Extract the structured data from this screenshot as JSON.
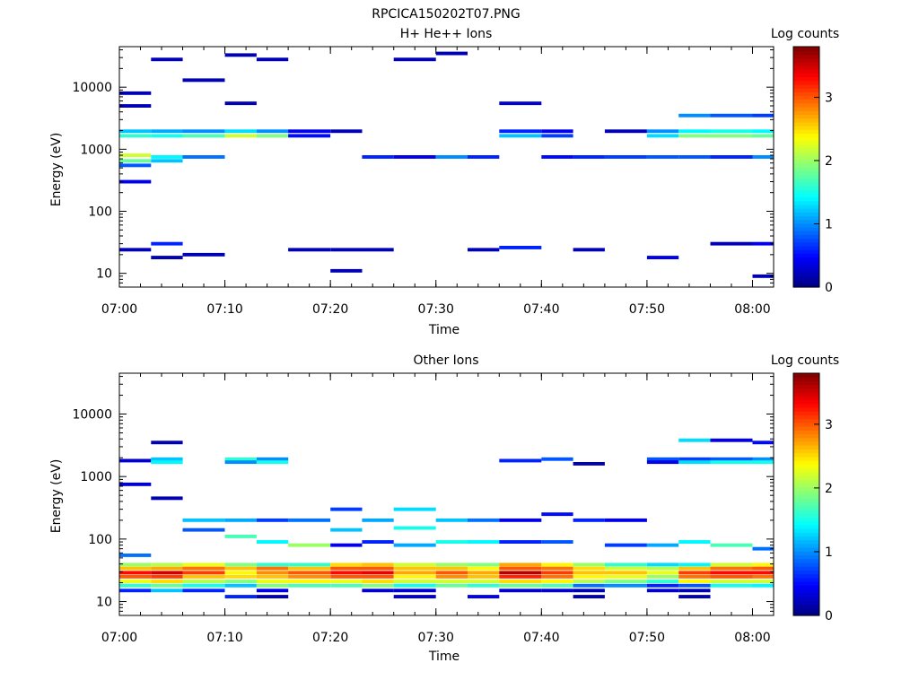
{
  "figure": {
    "title": "RPCICA150202T07.PNG"
  },
  "chart_data": [
    {
      "type": "heatmap",
      "title": "H+ He++ Ions",
      "xlabel": "Time",
      "ylabel": "Energy (eV)",
      "yscale": "log",
      "ylim": [
        6,
        45000
      ],
      "xlim": [
        "07:00",
        "08:02"
      ],
      "x_ticks": [
        "07:00",
        "07:10",
        "07:20",
        "07:30",
        "07:40",
        "07:50",
        "08:00"
      ],
      "y_ticks": [
        "10",
        "100",
        "1000",
        "10000"
      ],
      "colorbar": {
        "label": "Log counts",
        "range": [
          0,
          3.8
        ],
        "ticks": [
          "0",
          "1",
          "2",
          "3"
        ],
        "colormap": "jet"
      },
      "time_bins_start": [
        "07:00",
        "07:03",
        "07:06",
        "07:10",
        "07:13",
        "07:16",
        "07:20",
        "07:23",
        "07:26",
        "07:30",
        "07:33",
        "07:36",
        "07:40",
        "07:43",
        "07:46",
        "07:50",
        "07:53",
        "07:56",
        "08:00"
      ],
      "cells": [
        {
          "col": 0,
          "e": 1950,
          "v": 1.2
        },
        {
          "col": 0,
          "e": 1650,
          "v": 1.6
        },
        {
          "col": 0,
          "e": 800,
          "v": 2.2
        },
        {
          "col": 0,
          "e": 650,
          "v": 1.8
        },
        {
          "col": 0,
          "e": 550,
          "v": 0.8
        },
        {
          "col": 0,
          "e": 300,
          "v": 0.4
        },
        {
          "col": 0,
          "e": 5000,
          "v": 0.2
        },
        {
          "col": 0,
          "e": 8000,
          "v": 0.2
        },
        {
          "col": 0,
          "e": 24,
          "v": 0.2
        },
        {
          "col": 1,
          "e": 1950,
          "v": 1.1
        },
        {
          "col": 1,
          "e": 1650,
          "v": 1.5
        },
        {
          "col": 1,
          "e": 750,
          "v": 1.4
        },
        {
          "col": 1,
          "e": 650,
          "v": 1.2
        },
        {
          "col": 1,
          "e": 28000,
          "v": 0.2
        },
        {
          "col": 1,
          "e": 30,
          "v": 0.6
        },
        {
          "col": 1,
          "e": 18,
          "v": 0.2
        },
        {
          "col": 2,
          "e": 1950,
          "v": 1.0
        },
        {
          "col": 2,
          "e": 1650,
          "v": 1.7
        },
        {
          "col": 2,
          "e": 750,
          "v": 0.9
        },
        {
          "col": 2,
          "e": 13000,
          "v": 0.2
        },
        {
          "col": 2,
          "e": 20,
          "v": 0.2
        },
        {
          "col": 3,
          "e": 1950,
          "v": 1.3
        },
        {
          "col": 3,
          "e": 1650,
          "v": 2.2
        },
        {
          "col": 3,
          "e": 33000,
          "v": 0.2
        },
        {
          "col": 3,
          "e": 5500,
          "v": 0.2
        },
        {
          "col": 4,
          "e": 1950,
          "v": 1.0
        },
        {
          "col": 4,
          "e": 1650,
          "v": 1.9
        },
        {
          "col": 4,
          "e": 28000,
          "v": 0.2
        },
        {
          "col": 5,
          "e": 1950,
          "v": 0.4
        },
        {
          "col": 5,
          "e": 1650,
          "v": 0.5
        },
        {
          "col": 5,
          "e": 24,
          "v": 0.2
        },
        {
          "col": 6,
          "e": 1950,
          "v": 0.2
        },
        {
          "col": 6,
          "e": 24,
          "v": 0.2
        },
        {
          "col": 6,
          "e": 11,
          "v": 0.2
        },
        {
          "col": 7,
          "e": 24,
          "v": 0.2
        },
        {
          "col": 7,
          "e": 750,
          "v": 0.6
        },
        {
          "col": 8,
          "e": 750,
          "v": 0.4
        },
        {
          "col": 8,
          "e": 28000,
          "v": 0.2
        },
        {
          "col": 9,
          "e": 750,
          "v": 1.0
        },
        {
          "col": 9,
          "e": 35000,
          "v": 0.2
        },
        {
          "col": 10,
          "e": 750,
          "v": 0.6
        },
        {
          "col": 10,
          "e": 24,
          "v": 0.2
        },
        {
          "col": 11,
          "e": 1950,
          "v": 0.6
        },
        {
          "col": 11,
          "e": 1650,
          "v": 1.2
        },
        {
          "col": 11,
          "e": 26,
          "v": 0.6
        },
        {
          "col": 11,
          "e": 5500,
          "v": 0.3
        },
        {
          "col": 12,
          "e": 1950,
          "v": 0.4
        },
        {
          "col": 12,
          "e": 1650,
          "v": 0.7
        },
        {
          "col": 12,
          "e": 750,
          "v": 0.5
        },
        {
          "col": 13,
          "e": 750,
          "v": 0.6
        },
        {
          "col": 13,
          "e": 24,
          "v": 0.2
        },
        {
          "col": 14,
          "e": 750,
          "v": 0.7
        },
        {
          "col": 14,
          "e": 1950,
          "v": 0.2
        },
        {
          "col": 15,
          "e": 1950,
          "v": 1.0
        },
        {
          "col": 15,
          "e": 1650,
          "v": 1.3
        },
        {
          "col": 15,
          "e": 750,
          "v": 0.8
        },
        {
          "col": 15,
          "e": 18,
          "v": 0.4
        },
        {
          "col": 16,
          "e": 1950,
          "v": 1.4
        },
        {
          "col": 16,
          "e": 1650,
          "v": 1.9
        },
        {
          "col": 16,
          "e": 750,
          "v": 0.8
        },
        {
          "col": 16,
          "e": 3500,
          "v": 1.0
        },
        {
          "col": 17,
          "e": 1950,
          "v": 1.5
        },
        {
          "col": 17,
          "e": 1650,
          "v": 1.9
        },
        {
          "col": 17,
          "e": 750,
          "v": 0.6
        },
        {
          "col": 17,
          "e": 3500,
          "v": 0.8
        },
        {
          "col": 17,
          "e": 30,
          "v": 0.2
        },
        {
          "col": 18,
          "e": 1950,
          "v": 1.4
        },
        {
          "col": 18,
          "e": 1650,
          "v": 1.8
        },
        {
          "col": 18,
          "e": 750,
          "v": 1.0
        },
        {
          "col": 18,
          "e": 3500,
          "v": 0.7
        },
        {
          "col": 18,
          "e": 30,
          "v": 0.4
        },
        {
          "col": 18,
          "e": 9,
          "v": 0.2
        }
      ]
    },
    {
      "type": "heatmap",
      "title": "Other Ions",
      "xlabel": "Time",
      "ylabel": "Energy (eV)",
      "yscale": "log",
      "ylim": [
        6,
        45000
      ],
      "xlim": [
        "07:00",
        "08:02"
      ],
      "x_ticks": [
        "07:00",
        "07:10",
        "07:20",
        "07:30",
        "07:40",
        "07:50",
        "08:00"
      ],
      "y_ticks": [
        "10",
        "100",
        "1000",
        "10000"
      ],
      "colorbar": {
        "label": "Log counts",
        "range": [
          0,
          3.8
        ],
        "ticks": [
          "0",
          "1",
          "2",
          "3"
        ],
        "colormap": "jet"
      },
      "time_bins_start": [
        "07:00",
        "07:03",
        "07:06",
        "07:10",
        "07:13",
        "07:16",
        "07:20",
        "07:23",
        "07:26",
        "07:30",
        "07:33",
        "07:36",
        "07:40",
        "07:43",
        "07:46",
        "07:50",
        "07:53",
        "07:56",
        "08:00"
      ],
      "rows_low_energy": [
        {
          "e": 39,
          "values": [
            2.0,
            2.1,
            2.3,
            1.9,
            1.6,
            1.6,
            2.5,
            2.6,
            2.2,
            2.0,
            1.9,
            2.7,
            2.4,
            2.0,
            1.6,
            1.3,
            1.4,
            2.2,
            2.4
          ]
        },
        {
          "e": 34,
          "values": [
            2.6,
            2.7,
            2.9,
            2.6,
            2.9,
            2.6,
            3.0,
            3.0,
            2.6,
            2.6,
            2.4,
            3.0,
            2.9,
            2.5,
            2.2,
            2.1,
            2.6,
            2.9,
            3.0
          ]
        },
        {
          "e": 29,
          "values": [
            3.3,
            3.5,
            3.1,
            2.4,
            2.8,
            3.0,
            3.3,
            3.4,
            2.7,
            3.0,
            2.7,
            3.6,
            3.1,
            2.6,
            2.6,
            2.3,
            3.1,
            3.3,
            3.3
          ]
        },
        {
          "e": 25,
          "values": [
            3.0,
            3.1,
            2.6,
            2.5,
            2.6,
            2.8,
            3.0,
            3.0,
            2.4,
            2.8,
            2.6,
            3.2,
            2.9,
            2.4,
            2.3,
            2.0,
            2.9,
            3.0,
            2.9
          ]
        },
        {
          "e": 21,
          "values": [
            2.3,
            2.5,
            2.1,
            1.9,
            2.3,
            2.4,
            2.3,
            2.5,
            2.2,
            2.2,
            2.2,
            2.5,
            2.4,
            2.1,
            1.9,
            1.6,
            2.4,
            2.2,
            2.2
          ]
        },
        {
          "e": 18,
          "values": [
            1.6,
            1.8,
            1.5,
            1.2,
            1.9,
            1.7,
            1.7,
            1.9,
            1.5,
            1.8,
            1.6,
            1.8,
            1.7,
            0.9,
            1.0,
            0.6,
            0.8,
            1.5,
            1.4
          ]
        },
        {
          "e": 15,
          "values": [
            0.6,
            1.2,
            0.6,
            null,
            0.4,
            null,
            null,
            0.3,
            0.3,
            null,
            null,
            0.3,
            0.3,
            0.2,
            null,
            0.3,
            0.2,
            null,
            null
          ]
        },
        {
          "e": 12,
          "values": [
            null,
            null,
            null,
            0.6,
            0.2,
            null,
            null,
            null,
            0.3,
            null,
            0.4,
            null,
            null,
            0.2,
            null,
            null,
            0.2,
            null,
            null
          ]
        }
      ],
      "cells": [
        {
          "col": 0,
          "e": 1800,
          "v": 0.3
        },
        {
          "col": 0,
          "e": 750,
          "v": 0.3
        },
        {
          "col": 0,
          "e": 55,
          "v": 0.9
        },
        {
          "col": 1,
          "e": 3500,
          "v": 0.2
        },
        {
          "col": 1,
          "e": 1900,
          "v": 1.2
        },
        {
          "col": 1,
          "e": 1700,
          "v": 1.4
        },
        {
          "col": 1,
          "e": 450,
          "v": 0.2
        },
        {
          "col": 2,
          "e": 200,
          "v": 1.2
        },
        {
          "col": 2,
          "e": 140,
          "v": 0.8
        },
        {
          "col": 3,
          "e": 1900,
          "v": 1.6
        },
        {
          "col": 3,
          "e": 1700,
          "v": 1.0
        },
        {
          "col": 3,
          "e": 200,
          "v": 1.1
        },
        {
          "col": 3,
          "e": 110,
          "v": 1.7
        },
        {
          "col": 4,
          "e": 1900,
          "v": 1.0
        },
        {
          "col": 4,
          "e": 1700,
          "v": 1.5
        },
        {
          "col": 4,
          "e": 200,
          "v": 0.7
        },
        {
          "col": 4,
          "e": 90,
          "v": 1.4
        },
        {
          "col": 5,
          "e": 200,
          "v": 0.9
        },
        {
          "col": 5,
          "e": 80,
          "v": 2.0
        },
        {
          "col": 6,
          "e": 300,
          "v": 0.7
        },
        {
          "col": 6,
          "e": 140,
          "v": 1.2
        },
        {
          "col": 6,
          "e": 80,
          "v": 0.4
        },
        {
          "col": 7,
          "e": 200,
          "v": 1.1
        },
        {
          "col": 7,
          "e": 90,
          "v": 0.6
        },
        {
          "col": 8,
          "e": 300,
          "v": 1.3
        },
        {
          "col": 8,
          "e": 150,
          "v": 1.5
        },
        {
          "col": 8,
          "e": 80,
          "v": 1.1
        },
        {
          "col": 9,
          "e": 200,
          "v": 1.2
        },
        {
          "col": 9,
          "e": 90,
          "v": 1.5
        },
        {
          "col": 10,
          "e": 200,
          "v": 0.9
        },
        {
          "col": 10,
          "e": 90,
          "v": 1.4
        },
        {
          "col": 11,
          "e": 1800,
          "v": 0.6
        },
        {
          "col": 11,
          "e": 200,
          "v": 0.4
        },
        {
          "col": 11,
          "e": 90,
          "v": 0.6
        },
        {
          "col": 12,
          "e": 1900,
          "v": 0.8
        },
        {
          "col": 12,
          "e": 250,
          "v": 0.5
        },
        {
          "col": 12,
          "e": 90,
          "v": 0.8
        },
        {
          "col": 13,
          "e": 1600,
          "v": 0.2
        },
        {
          "col": 13,
          "e": 200,
          "v": 0.6
        },
        {
          "col": 14,
          "e": 200,
          "v": 0.4
        },
        {
          "col": 14,
          "e": 80,
          "v": 0.7
        },
        {
          "col": 15,
          "e": 1900,
          "v": 0.8
        },
        {
          "col": 15,
          "e": 1700,
          "v": 0.4
        },
        {
          "col": 15,
          "e": 80,
          "v": 1.1
        },
        {
          "col": 16,
          "e": 3800,
          "v": 1.3
        },
        {
          "col": 16,
          "e": 1900,
          "v": 0.7
        },
        {
          "col": 16,
          "e": 1700,
          "v": 1.3
        },
        {
          "col": 16,
          "e": 90,
          "v": 1.4
        },
        {
          "col": 17,
          "e": 3800,
          "v": 0.4
        },
        {
          "col": 17,
          "e": 1900,
          "v": 0.8
        },
        {
          "col": 17,
          "e": 1700,
          "v": 1.5
        },
        {
          "col": 17,
          "e": 80,
          "v": 1.7
        },
        {
          "col": 18,
          "e": 3500,
          "v": 0.5
        },
        {
          "col": 18,
          "e": 1900,
          "v": 1.0
        },
        {
          "col": 18,
          "e": 1700,
          "v": 1.5
        },
        {
          "col": 18,
          "e": 70,
          "v": 0.9
        }
      ]
    }
  ]
}
